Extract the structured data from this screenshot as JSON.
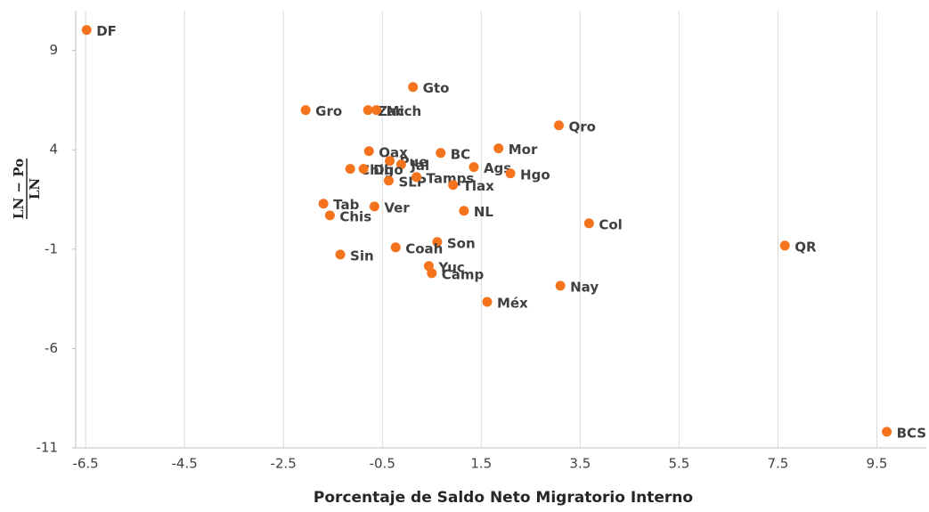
{
  "chart_data": {
    "type": "scatter",
    "xlabel": "Porcentaje de Saldo Neto Migratorio Interno",
    "ylabel": {
      "numerator": "LN − Po",
      "denominator": "LN"
    },
    "color": "#f4731c",
    "grid": "vertical",
    "xlim": [
      -6.7,
      10.5
    ],
    "xticks": [
      -6.5,
      -4.5,
      -2.5,
      -0.5,
      1.5,
      3.5,
      5.5,
      7.5,
      9.5
    ],
    "ylim": [
      -11,
      11
    ],
    "yticks": [
      9,
      4,
      -1,
      -6,
      -11
    ],
    "labels": [
      "DF",
      "Gto",
      "Gro",
      "Zac",
      "Mich",
      "Qro",
      "Oax",
      "BC",
      "Mor",
      "Pue",
      "Jal",
      "Ags",
      "Hgo",
      "Chih",
      "Dgo",
      "SLP",
      "Tamps",
      "Tlax",
      "Tab",
      "Chis",
      "Ver",
      "NL",
      "Col",
      "Son",
      "Coah",
      "Sin",
      "QR",
      "Yuc",
      "Camp",
      "Nay",
      "Méx",
      "BCS"
    ],
    "x": [
      -6.48,
      0.12,
      -2.05,
      -0.79,
      -0.62,
      3.07,
      -0.77,
      0.68,
      1.85,
      -0.35,
      -0.12,
      1.35,
      2.09,
      -1.15,
      -0.88,
      -0.37,
      0.19,
      0.93,
      -1.69,
      -1.56,
      -0.66,
      1.15,
      3.68,
      0.61,
      -0.23,
      -1.35,
      7.64,
      0.44,
      0.5,
      3.1,
      1.62,
      9.7
    ],
    "y": [
      10.03,
      7.16,
      6.0,
      6.0,
      6.0,
      5.23,
      3.93,
      3.84,
      4.07,
      3.44,
      3.26,
      3.13,
      2.81,
      3.04,
      3.04,
      2.45,
      2.63,
      2.23,
      1.29,
      0.7,
      1.15,
      0.93,
      0.3,
      -0.64,
      -0.91,
      -1.27,
      -0.82,
      -1.85,
      -2.21,
      -2.84,
      -3.65,
      -10.19
    ]
  }
}
